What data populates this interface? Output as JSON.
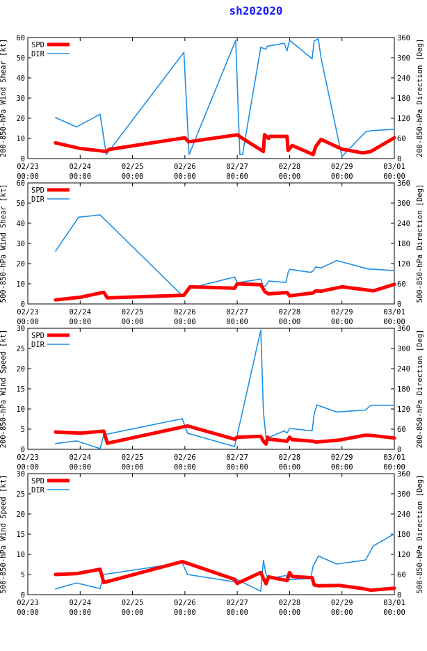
{
  "page_title": "sh202020",
  "colors": {
    "spd": "#ff0000",
    "dir": "#1e8fe6",
    "title": "#1a1aff"
  },
  "x_ticks": [
    {
      "date": "02/23",
      "time": "00:00"
    },
    {
      "date": "02/24",
      "time": "00:00"
    },
    {
      "date": "02/25",
      "time": "00:00"
    },
    {
      "date": "02/26",
      "time": "00:00"
    },
    {
      "date": "02/27",
      "time": "00:00"
    },
    {
      "date": "02/28",
      "time": "00:00"
    },
    {
      "date": "02/29",
      "time": "00:00"
    },
    {
      "date": "03/01",
      "time": "00:00"
    }
  ],
  "chart_data": [
    {
      "type": "line",
      "ylabel": "200-850-hPa Wind Shear [kt]",
      "y2label": "200-850-hPa Direction [Deg]",
      "ylim": [
        0,
        60
      ],
      "yticks": [
        0,
        10,
        20,
        30,
        40,
        50,
        60
      ],
      "y2lim": [
        0,
        360
      ],
      "y2ticks": [
        0,
        60,
        120,
        180,
        240,
        300,
        360
      ],
      "xlim": [
        0,
        7
      ],
      "series": [
        {
          "name": "SPD",
          "axis": "left",
          "x": [
            0.53,
            1.0,
            1.5,
            1.55,
            3.0,
            3.07,
            4.0,
            4.1,
            4.5,
            4.52,
            4.6,
            4.62,
            4.95,
            4.97,
            5.05,
            5.45,
            5.5,
            5.6,
            6.0,
            6.4,
            6.55,
            7.0
          ],
          "y": [
            7.8,
            5.0,
            3.5,
            4.5,
            10.3,
            8.3,
            11.8,
            10.0,
            3.5,
            11.8,
            10.0,
            11.0,
            11.0,
            4.0,
            6.5,
            2.0,
            6.0,
            9.5,
            4.7,
            2.8,
            3.5,
            10.3
          ]
        },
        {
          "name": "DIR",
          "axis": "right",
          "x": [
            0.53,
            0.93,
            1.38,
            1.5,
            2.98,
            3.08,
            3.97,
            4.05,
            4.1,
            4.45,
            4.55,
            4.57,
            4.9,
            4.95,
            5.0,
            5.43,
            5.47,
            5.55,
            5.6,
            6.0,
            6.45,
            6.55,
            7.0
          ],
          "y": [
            122,
            94,
            132,
            12,
            316,
            12,
            352,
            12,
            12,
            331,
            325,
            334,
            343,
            320,
            352,
            297,
            350,
            356,
            300,
            6,
            79,
            83,
            87
          ]
        }
      ],
      "legend": [
        "SPD",
        "DIR"
      ]
    },
    {
      "type": "line",
      "ylabel": "500-850-hPa Wind Shear [kt]",
      "y2label": "500-850-hPa Direction [Deg]",
      "ylim": [
        0,
        60
      ],
      "yticks": [
        0,
        10,
        20,
        30,
        40,
        50,
        60
      ],
      "y2lim": [
        0,
        360
      ],
      "y2ticks": [
        0,
        60,
        120,
        180,
        240,
        300,
        360
      ],
      "xlim": [
        0,
        7
      ],
      "series": [
        {
          "name": "SPD",
          "axis": "left",
          "x": [
            0.53,
            1.0,
            1.45,
            1.52,
            2.98,
            3.1,
            3.95,
            4.0,
            4.45,
            4.53,
            4.6,
            4.95,
            5.0,
            5.45,
            5.5,
            5.6,
            6.0,
            6.6,
            7.0
          ],
          "y": [
            2.0,
            3.3,
            5.8,
            3.0,
            4.3,
            8.5,
            7.8,
            10.0,
            9.5,
            6.0,
            5.0,
            5.7,
            4.0,
            5.5,
            6.5,
            6.3,
            8.5,
            6.5,
            9.7
          ]
        },
        {
          "name": "DIR",
          "axis": "right",
          "x": [
            0.53,
            0.97,
            1.38,
            2.95,
            3.05,
            3.95,
            4.0,
            4.45,
            4.5,
            4.55,
            4.6,
            4.93,
            4.97,
            5.0,
            5.4,
            5.45,
            5.5,
            5.6,
            5.9,
            6.5,
            7.0
          ],
          "y": [
            157,
            258,
            265,
            25,
            45,
            80,
            63,
            74,
            50,
            55,
            68,
            64,
            93,
            103,
            94,
            98,
            110,
            107,
            129,
            104,
            99
          ]
        }
      ],
      "legend": [
        "SPD",
        "DIR"
      ]
    },
    {
      "type": "line",
      "ylabel": "200-850-hPa Wind Speed [kt]",
      "y2label": "200-850-hPa Direction [Deg]",
      "ylim": [
        0,
        30
      ],
      "yticks": [
        0,
        5,
        10,
        15,
        20,
        25,
        30
      ],
      "y2lim": [
        0,
        360
      ],
      "y2ticks": [
        0,
        60,
        120,
        180,
        240,
        300,
        360
      ],
      "xlim": [
        0,
        7
      ],
      "series": [
        {
          "name": "SPD",
          "axis": "left",
          "x": [
            0.53,
            1.0,
            1.45,
            1.52,
            3.05,
            3.95,
            4.0,
            4.45,
            4.5,
            4.55,
            4.58,
            4.62,
            4.95,
            5.0,
            5.05,
            5.45,
            5.5,
            5.95,
            6.45,
            6.6,
            7.0
          ],
          "y": [
            4.3,
            4.0,
            4.5,
            1.5,
            5.8,
            2.5,
            3.0,
            3.2,
            2.0,
            1.3,
            3.0,
            2.5,
            2.0,
            3.0,
            2.4,
            2.0,
            1.8,
            2.3,
            3.5,
            3.4,
            2.8
          ]
        },
        {
          "name": "DIR",
          "axis": "right",
          "x": [
            0.53,
            0.93,
            1.38,
            1.45,
            2.95,
            3.05,
            3.95,
            4.45,
            4.5,
            4.55,
            4.6,
            4.9,
            4.95,
            5.0,
            5.43,
            5.47,
            5.52,
            5.9,
            6.45,
            6.55,
            7.0
          ],
          "y": [
            17,
            25,
            2,
            43,
            91,
            48,
            8,
            355,
            110,
            35,
            35,
            55,
            48,
            62,
            55,
            105,
            132,
            111,
            117,
            131,
            131
          ]
        }
      ],
      "legend": [
        "SPD",
        "DIR"
      ]
    },
    {
      "type": "line",
      "ylabel": "500-850-hPa Wind Speed [kt]",
      "y2label": "500-850-hPa Direction [Deg]",
      "ylim": [
        0,
        30
      ],
      "yticks": [
        0,
        5,
        10,
        15,
        20,
        25,
        30
      ],
      "y2lim": [
        0,
        360
      ],
      "y2ticks": [
        0,
        60,
        120,
        180,
        240,
        300,
        360
      ],
      "xlim": [
        0,
        7
      ],
      "series": [
        {
          "name": "SPD",
          "axis": "left",
          "x": [
            0.53,
            0.93,
            1.38,
            1.45,
            2.95,
            3.95,
            4.0,
            4.45,
            4.5,
            4.55,
            4.6,
            4.95,
            5.0,
            5.05,
            5.43,
            5.47,
            5.55,
            5.95,
            6.4,
            6.55,
            7.0
          ],
          "y": [
            5.0,
            5.2,
            6.3,
            3.0,
            8.2,
            3.8,
            2.8,
            5.5,
            4.0,
            2.7,
            4.4,
            3.5,
            5.5,
            4.5,
            4.2,
            2.4,
            2.2,
            2.3,
            1.5,
            1.1,
            1.6
          ]
        },
        {
          "name": "DIR",
          "axis": "right",
          "x": [
            0.53,
            0.93,
            1.38,
            1.45,
            2.95,
            3.05,
            3.95,
            4.0,
            4.45,
            4.5,
            4.55,
            4.6,
            4.93,
            4.97,
            5.0,
            5.4,
            5.45,
            5.55,
            5.9,
            6.45,
            6.6,
            7.0
          ],
          "y": [
            17,
            35,
            18,
            60,
            95,
            60,
            38,
            45,
            10,
            102,
            60,
            48,
            57,
            43,
            45,
            48,
            85,
            115,
            91,
            103,
            145,
            181
          ]
        }
      ],
      "legend": [
        "SPD",
        "DIR"
      ]
    }
  ]
}
